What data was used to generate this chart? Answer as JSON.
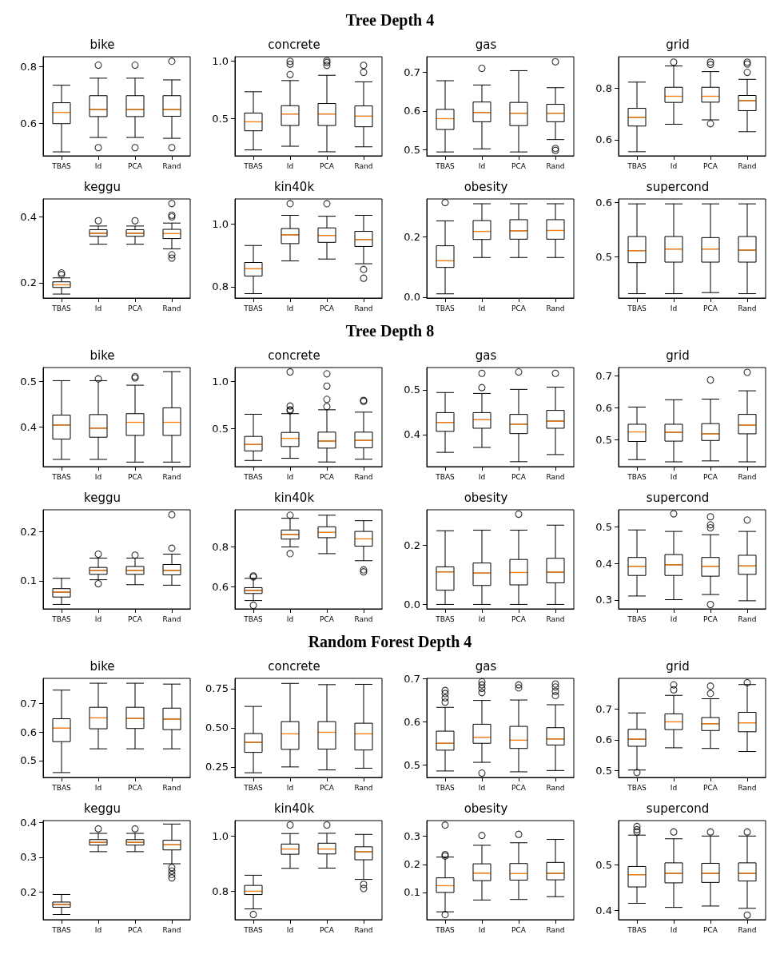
{
  "chart_data": [
    {
      "type": "other",
      "title": "Tree Depth 4"
    },
    {
      "type": "box",
      "title": "bike",
      "categories": [
        "TBAS",
        "Id",
        "PCA",
        "Rand"
      ],
      "ylim": [
        0.484,
        0.835
      ],
      "yticks": [
        0.6,
        0.8
      ],
      "boxes": [
        {
          "low": 0.498,
          "q1": 0.598,
          "median": 0.638,
          "q3": 0.672,
          "high": 0.734
        },
        {
          "low": 0.549,
          "q1": 0.623,
          "median": 0.648,
          "q3": 0.697,
          "high": 0.759,
          "outliers": [
            0.805,
            0.513
          ]
        },
        {
          "low": 0.549,
          "q1": 0.623,
          "median": 0.648,
          "q3": 0.697,
          "high": 0.759,
          "outliers": [
            0.805,
            0.513
          ]
        },
        {
          "low": 0.546,
          "q1": 0.624,
          "median": 0.648,
          "q3": 0.697,
          "high": 0.753,
          "outliers": [
            0.819,
            0.513
          ]
        }
      ]
    },
    {
      "type": "box",
      "title": "concrete",
      "categories": [
        "TBAS",
        "Id",
        "PCA",
        "Rand"
      ],
      "ylim": [
        0.175,
        1.035
      ],
      "yticks": [
        0.5,
        {
          "value": 1,
          "label": "1.0"
        }
      ],
      "boxes": [
        {
          "low": 0.226,
          "q1": 0.392,
          "median": 0.47,
          "q3": 0.546,
          "high": 0.731
        },
        {
          "low": 0.258,
          "q1": 0.438,
          "median": 0.538,
          "q3": 0.61,
          "high": 0.828,
          "outliers": [
            0.995,
            0.97,
            0.88
          ]
        },
        {
          "low": 0.21,
          "q1": 0.438,
          "median": 0.538,
          "q3": 0.629,
          "high": 0.874,
          "outliers": [
            1.0,
            0.985,
            0.96
          ]
        },
        {
          "low": 0.253,
          "q1": 0.427,
          "median": 0.519,
          "q3": 0.608,
          "high": 0.817,
          "outliers": [
            0.96,
            0.9
          ]
        }
      ]
    },
    {
      "type": "box",
      "title": "gas",
      "categories": [
        "TBAS",
        "Id",
        "PCA",
        "Rand"
      ],
      "ylim": [
        0.484,
        0.74
      ],
      "yticks": [
        0.5,
        0.6,
        0.7
      ],
      "boxes": [
        {
          "low": 0.494,
          "q1": 0.552,
          "median": 0.58,
          "q3": 0.604,
          "high": 0.678
        },
        {
          "low": 0.502,
          "q1": 0.572,
          "median": 0.596,
          "q3": 0.623,
          "high": 0.667,
          "outliers": [
            0.71
          ]
        },
        {
          "low": 0.494,
          "q1": 0.562,
          "median": 0.594,
          "q3": 0.622,
          "high": 0.704
        },
        {
          "low": 0.526,
          "q1": 0.572,
          "median": 0.594,
          "q3": 0.617,
          "high": 0.66,
          "outliers": [
            0.727,
            0.503,
            0.498
          ]
        }
      ]
    },
    {
      "type": "box",
      "title": "grid",
      "categories": [
        "TBAS",
        "Id",
        "PCA",
        "Rand"
      ],
      "ylim": [
        0.537,
        0.923
      ],
      "yticks": [
        0.6,
        0.8
      ],
      "boxes": [
        {
          "low": 0.553,
          "q1": 0.653,
          "median": 0.687,
          "q3": 0.722,
          "high": 0.824
        },
        {
          "low": 0.66,
          "q1": 0.745,
          "median": 0.769,
          "q3": 0.804,
          "high": 0.887,
          "outliers": [
            0.902
          ]
        },
        {
          "low": 0.677,
          "q1": 0.746,
          "median": 0.769,
          "q3": 0.804,
          "high": 0.865,
          "outliers": [
            0.902,
            0.893,
            0.662
          ]
        },
        {
          "low": 0.631,
          "q1": 0.713,
          "median": 0.752,
          "q3": 0.772,
          "high": 0.835,
          "outliers": [
            0.902,
            0.895,
            0.862
          ]
        }
      ]
    },
    {
      "type": "box",
      "title": "keggu",
      "categories": [
        "TBAS",
        "Id",
        "PCA",
        "Rand"
      ],
      "ylim": [
        0.154,
        0.454
      ],
      "yticks": [
        0.2,
        0.4
      ],
      "boxes": [
        {
          "low": 0.166,
          "q1": 0.186,
          "median": 0.194,
          "q3": 0.203,
          "high": 0.215,
          "outliers": [
            0.23,
            0.225
          ]
        },
        {
          "low": 0.317,
          "q1": 0.341,
          "median": 0.35,
          "q3": 0.361,
          "high": 0.372,
          "outliers": [
            0.388
          ]
        },
        {
          "low": 0.317,
          "q1": 0.341,
          "median": 0.35,
          "q3": 0.361,
          "high": 0.372,
          "outliers": [
            0.388
          ]
        },
        {
          "low": 0.303,
          "q1": 0.334,
          "median": 0.349,
          "q3": 0.362,
          "high": 0.381,
          "outliers": [
            0.44,
            0.405,
            0.4,
            0.285,
            0.275
          ]
        }
      ]
    },
    {
      "type": "box",
      "title": "kin40k",
      "categories": [
        "TBAS",
        "Id",
        "PCA",
        "Rand"
      ],
      "ylim": [
        0.764,
        1.079
      ],
      "yticks": [
        0.8,
        {
          "value": 1,
          "label": "1.0"
        }
      ],
      "boxes": [
        {
          "low": 0.778,
          "q1": 0.834,
          "median": 0.857,
          "q3": 0.877,
          "high": 0.931
        },
        {
          "low": 0.882,
          "q1": 0.937,
          "median": 0.965,
          "q3": 0.985,
          "high": 1.027,
          "outliers": [
            1.064
          ]
        },
        {
          "low": 0.888,
          "q1": 0.941,
          "median": 0.963,
          "q3": 0.987,
          "high": 1.024,
          "outliers": [
            1.064
          ]
        },
        {
          "low": 0.873,
          "q1": 0.928,
          "median": 0.95,
          "q3": 0.976,
          "high": 1.027,
          "outliers": [
            0.855,
            0.827
          ]
        }
      ]
    },
    {
      "type": "box",
      "title": "obesity",
      "categories": [
        "TBAS",
        "Id",
        "PCA",
        "Rand"
      ],
      "ylim": [
        -0.003,
        0.327
      ],
      "yticks": [
        {
          "value": 0,
          "label": "0.0"
        },
        0.2
      ],
      "boxes": [
        {
          "low": 0.011,
          "q1": 0.099,
          "median": 0.121,
          "q3": 0.171,
          "high": 0.254,
          "outliers": [
            0.315
          ]
        },
        {
          "low": 0.132,
          "q1": 0.192,
          "median": 0.219,
          "q3": 0.255,
          "high": 0.311
        },
        {
          "low": 0.132,
          "q1": 0.193,
          "median": 0.221,
          "q3": 0.258,
          "high": 0.311
        },
        {
          "low": 0.132,
          "q1": 0.193,
          "median": 0.222,
          "q3": 0.258,
          "high": 0.311
        }
      ]
    },
    {
      "type": "box",
      "title": "supercond",
      "categories": [
        "TBAS",
        "Id",
        "PCA",
        "Rand"
      ],
      "ylim": [
        0.424,
        0.606
      ],
      "yticks": [
        0.5,
        0.6
      ],
      "boxes": [
        {
          "low": 0.432,
          "q1": 0.489,
          "median": 0.511,
          "q3": 0.537,
          "high": 0.597
        },
        {
          "low": 0.432,
          "q1": 0.49,
          "median": 0.514,
          "q3": 0.537,
          "high": 0.597
        },
        {
          "low": 0.434,
          "q1": 0.49,
          "median": 0.514,
          "q3": 0.535,
          "high": 0.597
        },
        {
          "low": 0.432,
          "q1": 0.49,
          "median": 0.512,
          "q3": 0.537,
          "high": 0.597
        }
      ]
    },
    {
      "type": "other",
      "title": "Tree Depth 8"
    },
    {
      "type": "box",
      "title": "bike",
      "categories": [
        "TBAS",
        "Id",
        "PCA",
        "Rand"
      ],
      "ylim": [
        0.312,
        0.531
      ],
      "yticks": [
        0.4,
        0.5
      ],
      "boxes": [
        {
          "low": 0.328,
          "q1": 0.373,
          "median": 0.404,
          "q3": 0.426,
          "high": 0.502
        },
        {
          "low": 0.328,
          "q1": 0.377,
          "median": 0.397,
          "q3": 0.427,
          "high": 0.502,
          "outliers": [
            0.506
          ]
        },
        {
          "low": 0.322,
          "q1": 0.381,
          "median": 0.41,
          "q3": 0.429,
          "high": 0.492,
          "outliers": [
            0.508,
            0.511
          ]
        },
        {
          "low": 0.322,
          "q1": 0.381,
          "median": 0.41,
          "q3": 0.442,
          "high": 0.522
        }
      ]
    },
    {
      "type": "box",
      "title": "concrete",
      "categories": [
        "TBAS",
        "Id",
        "PCA",
        "Rand"
      ],
      "ylim": [
        0.1,
        1.146
      ],
      "yticks": [
        0.5,
        {
          "value": 1,
          "label": "1.0"
        }
      ],
      "boxes": [
        {
          "low": 0.165,
          "q1": 0.266,
          "median": 0.334,
          "q3": 0.419,
          "high": 0.653
        },
        {
          "low": 0.188,
          "q1": 0.312,
          "median": 0.399,
          "q3": 0.461,
          "high": 0.659,
          "outliers": [
            0.74,
            0.7,
            0.69,
            1.1
          ]
        },
        {
          "low": 0.149,
          "q1": 0.295,
          "median": 0.37,
          "q3": 0.464,
          "high": 0.7,
          "outliers": [
            0.735,
            0.81,
            0.95,
            1.08
          ]
        },
        {
          "low": 0.178,
          "q1": 0.299,
          "median": 0.377,
          "q3": 0.464,
          "high": 0.675,
          "outliers": [
            0.8,
            0.79
          ]
        }
      ]
    },
    {
      "type": "box",
      "title": "gas",
      "categories": [
        "TBAS",
        "Id",
        "PCA",
        "Rand"
      ],
      "ylim": [
        0.328,
        0.55
      ],
      "yticks": [
        0.4,
        0.5
      ],
      "boxes": [
        {
          "low": 0.36,
          "q1": 0.407,
          "median": 0.427,
          "q3": 0.449,
          "high": 0.494
        },
        {
          "low": 0.371,
          "q1": 0.414,
          "median": 0.433,
          "q3": 0.449,
          "high": 0.492,
          "outliers": [
            0.537,
            0.505
          ]
        },
        {
          "low": 0.339,
          "q1": 0.402,
          "median": 0.423,
          "q3": 0.445,
          "high": 0.501,
          "outliers": [
            0.54
          ]
        },
        {
          "low": 0.355,
          "q1": 0.414,
          "median": 0.43,
          "q3": 0.454,
          "high": 0.506,
          "outliers": [
            0.537
          ]
        }
      ]
    },
    {
      "type": "box",
      "title": "grid",
      "categories": [
        "TBAS",
        "Id",
        "PCA",
        "Rand"
      ],
      "ylim": [
        0.415,
        0.726
      ],
      "yticks": [
        0.5,
        0.6,
        0.7
      ],
      "boxes": [
        {
          "low": 0.437,
          "q1": 0.494,
          "median": 0.524,
          "q3": 0.548,
          "high": 0.602
        },
        {
          "low": 0.43,
          "q1": 0.495,
          "median": 0.523,
          "q3": 0.548,
          "high": 0.625
        },
        {
          "low": 0.433,
          "q1": 0.497,
          "median": 0.518,
          "q3": 0.55,
          "high": 0.627,
          "outliers": [
            0.687
          ]
        },
        {
          "low": 0.43,
          "q1": 0.518,
          "median": 0.545,
          "q3": 0.579,
          "high": 0.653,
          "outliers": [
            0.711
          ]
        }
      ]
    },
    {
      "type": "box",
      "title": "keggu",
      "categories": [
        "TBAS",
        "Id",
        "PCA",
        "Rand"
      ],
      "ylim": [
        0.043,
        0.244
      ],
      "yticks": [
        0.1,
        0.2
      ],
      "boxes": [
        {
          "low": 0.052,
          "q1": 0.067,
          "median": 0.077,
          "q3": 0.084,
          "high": 0.105
        },
        {
          "low": 0.102,
          "q1": 0.113,
          "median": 0.121,
          "q3": 0.127,
          "high": 0.146,
          "outliers": [
            0.154,
            0.094
          ]
        },
        {
          "low": 0.092,
          "q1": 0.113,
          "median": 0.121,
          "q3": 0.129,
          "high": 0.146,
          "outliers": [
            0.152
          ]
        },
        {
          "low": 0.091,
          "q1": 0.112,
          "median": 0.121,
          "q3": 0.133,
          "high": 0.154,
          "outliers": [
            0.166,
            0.234
          ]
        }
      ]
    },
    {
      "type": "box",
      "title": "kin40k",
      "categories": [
        "TBAS",
        "Id",
        "PCA",
        "Rand"
      ],
      "ylim": [
        0.492,
        0.982
      ],
      "yticks": [
        0.6,
        0.8
      ],
      "boxes": [
        {
          "low": 0.533,
          "q1": 0.568,
          "median": 0.583,
          "q3": 0.597,
          "high": 0.643,
          "outliers": [
            0.655,
            0.65,
            0.51
          ]
        },
        {
          "low": 0.798,
          "q1": 0.837,
          "median": 0.86,
          "q3": 0.882,
          "high": 0.94,
          "outliers": [
            0.955,
            0.765
          ]
        },
        {
          "low": 0.765,
          "q1": 0.844,
          "median": 0.87,
          "q3": 0.898,
          "high": 0.955
        },
        {
          "low": 0.73,
          "q1": 0.802,
          "median": 0.838,
          "q3": 0.875,
          "high": 0.928,
          "outliers": [
            0.685,
            0.675
          ]
        }
      ]
    },
    {
      "type": "box",
      "title": "obesity",
      "categories": [
        "TBAS",
        "Id",
        "PCA",
        "Rand"
      ],
      "ylim": [
        -0.015,
        0.32
      ],
      "yticks": [
        {
          "value": 0,
          "label": "0.0"
        },
        0.2
      ],
      "boxes": [
        {
          "low": 0,
          "q1": 0.048,
          "median": 0.11,
          "q3": 0.127,
          "high": 0.249
        },
        {
          "low": 0,
          "q1": 0.064,
          "median": 0.106,
          "q3": 0.14,
          "high": 0.251
        },
        {
          "low": 0,
          "q1": 0.066,
          "median": 0.108,
          "q3": 0.152,
          "high": 0.251,
          "outliers": [
            0.305
          ]
        },
        {
          "low": 0,
          "q1": 0.073,
          "median": 0.109,
          "q3": 0.156,
          "high": 0.268
        }
      ]
    },
    {
      "type": "box",
      "title": "supercond",
      "categories": [
        "TBAS",
        "Id",
        "PCA",
        "Rand"
      ],
      "ylim": [
        0.276,
        0.546
      ],
      "yticks": [
        0.3,
        0.4,
        0.5
      ],
      "boxes": [
        {
          "low": 0.311,
          "q1": 0.367,
          "median": 0.392,
          "q3": 0.416,
          "high": 0.491
        },
        {
          "low": 0.301,
          "q1": 0.367,
          "median": 0.396,
          "q3": 0.424,
          "high": 0.487,
          "outliers": [
            0.535
          ]
        },
        {
          "low": 0.315,
          "q1": 0.365,
          "median": 0.392,
          "q3": 0.416,
          "high": 0.478,
          "outliers": [
            0.527,
            0.505,
            0.497,
            0.288
          ]
        },
        {
          "low": 0.298,
          "q1": 0.37,
          "median": 0.393,
          "q3": 0.422,
          "high": 0.487,
          "outliers": [
            0.518
          ]
        }
      ]
    },
    {
      "type": "other",
      "title": "Random Forest Depth 4"
    },
    {
      "type": "box",
      "title": "bike",
      "categories": [
        "TBAS",
        "Id",
        "PCA",
        "Rand"
      ],
      "ylim": [
        0.441,
        0.787
      ],
      "yticks": [
        0.5,
        0.6,
        0.7
      ],
      "boxes": [
        {
          "low": 0.458,
          "q1": 0.566,
          "median": 0.613,
          "q3": 0.646,
          "high": 0.746
        },
        {
          "low": 0.541,
          "q1": 0.611,
          "median": 0.649,
          "q3": 0.686,
          "high": 0.77
        },
        {
          "low": 0.541,
          "q1": 0.612,
          "median": 0.647,
          "q3": 0.686,
          "high": 0.77
        },
        {
          "low": 0.541,
          "q1": 0.608,
          "median": 0.645,
          "q3": 0.683,
          "high": 0.767
        }
      ]
    },
    {
      "type": "box",
      "title": "concrete",
      "categories": [
        "TBAS",
        "Id",
        "PCA",
        "Rand"
      ],
      "ylim": [
        0.183,
        0.815
      ],
      "yticks": [
        0.25,
        {
          "value": 0.5,
          "label": "0.50"
        },
        0.75
      ],
      "boxes": [
        {
          "low": 0.213,
          "q1": 0.343,
          "median": 0.407,
          "q3": 0.463,
          "high": 0.636
        },
        {
          "low": 0.25,
          "q1": 0.362,
          "median": 0.461,
          "q3": 0.539,
          "high": 0.783
        },
        {
          "low": 0.231,
          "q1": 0.364,
          "median": 0.471,
          "q3": 0.539,
          "high": 0.775
        },
        {
          "low": 0.242,
          "q1": 0.358,
          "median": 0.461,
          "q3": 0.529,
          "high": 0.777
        }
      ]
    },
    {
      "type": "box",
      "title": "gas",
      "categories": [
        "TBAS",
        "Id",
        "PCA",
        "Rand"
      ],
      "ylim": [
        0.471,
        0.7
      ],
      "yticks": [
        0.5,
        0.6,
        0.7
      ],
      "boxes": [
        {
          "low": 0.486,
          "q1": 0.534,
          "median": 0.55,
          "q3": 0.578,
          "high": 0.633,
          "outliers": [
            0.645,
            0.655,
            0.665,
            0.672
          ]
        },
        {
          "low": 0.506,
          "q1": 0.55,
          "median": 0.564,
          "q3": 0.594,
          "high": 0.649,
          "outliers": [
            0.667,
            0.677,
            0.685,
            0.692,
            0.481
          ]
        },
        {
          "low": 0.484,
          "q1": 0.538,
          "median": 0.557,
          "q3": 0.589,
          "high": 0.65,
          "outliers": [
            0.678,
            0.685
          ]
        },
        {
          "low": 0.487,
          "q1": 0.546,
          "median": 0.56,
          "q3": 0.586,
          "high": 0.639,
          "outliers": [
            0.66,
            0.67,
            0.68,
            0.687
          ]
        }
      ]
    },
    {
      "type": "box",
      "title": "grid",
      "categories": [
        "TBAS",
        "Id",
        "PCA",
        "Rand"
      ],
      "ylim": [
        0.478,
        0.799
      ],
      "yticks": [
        0.5,
        0.6,
        0.7
      ],
      "boxes": [
        {
          "low": 0.502,
          "q1": 0.579,
          "median": 0.602,
          "q3": 0.634,
          "high": 0.687,
          "outliers": [
            0.494
          ]
        },
        {
          "low": 0.574,
          "q1": 0.633,
          "median": 0.658,
          "q3": 0.684,
          "high": 0.744,
          "outliers": [
            0.762,
            0.778
          ]
        },
        {
          "low": 0.572,
          "q1": 0.63,
          "median": 0.652,
          "q3": 0.672,
          "high": 0.733,
          "outliers": [
            0.75,
            0.774
          ]
        },
        {
          "low": 0.562,
          "q1": 0.626,
          "median": 0.655,
          "q3": 0.689,
          "high": 0.779,
          "outliers": [
            0.785
          ]
        }
      ]
    },
    {
      "type": "box",
      "title": "keggu",
      "categories": [
        "TBAS",
        "Id",
        "PCA",
        "Rand"
      ],
      "ylim": [
        0.119,
        0.406
      ],
      "yticks": [
        0.2,
        0.3,
        0.4
      ],
      "boxes": [
        {
          "low": 0.134,
          "q1": 0.155,
          "median": 0.163,
          "q3": 0.17,
          "high": 0.192
        },
        {
          "low": 0.316,
          "q1": 0.335,
          "median": 0.343,
          "q3": 0.351,
          "high": 0.369,
          "outliers": [
            0.382
          ]
        },
        {
          "low": 0.316,
          "q1": 0.335,
          "median": 0.343,
          "q3": 0.351,
          "high": 0.369,
          "outliers": [
            0.382
          ]
        },
        {
          "low": 0.281,
          "q1": 0.321,
          "median": 0.336,
          "q3": 0.349,
          "high": 0.396,
          "outliers": [
            0.27,
            0.26,
            0.25,
            0.24
          ]
        }
      ]
    },
    {
      "type": "box",
      "title": "kin40k",
      "categories": [
        "TBAS",
        "Id",
        "PCA",
        "Rand"
      ],
      "ylim": [
        0.697,
        1.056
      ],
      "yticks": [
        0.8,
        {
          "value": 1,
          "label": "1.0"
        }
      ],
      "boxes": [
        {
          "low": 0.736,
          "q1": 0.788,
          "median": 0.8,
          "q3": 0.821,
          "high": 0.858,
          "outliers": [
            0.716
          ]
        },
        {
          "low": 0.883,
          "q1": 0.934,
          "median": 0.953,
          "q3": 0.971,
          "high": 1.009,
          "outliers": [
            1.04
          ]
        },
        {
          "low": 0.884,
          "q1": 0.935,
          "median": 0.953,
          "q3": 0.974,
          "high": 1.01,
          "outliers": [
            1.04
          ]
        },
        {
          "low": 0.843,
          "q1": 0.914,
          "median": 0.943,
          "q3": 0.961,
          "high": 1.006,
          "outliers": [
            0.825,
            0.81
          ]
        }
      ]
    },
    {
      "type": "box",
      "title": "obesity",
      "categories": [
        "TBAS",
        "Id",
        "PCA",
        "Rand"
      ],
      "ylim": [
        0.003,
        0.356
      ],
      "yticks": [
        0.1,
        0.2,
        0.3
      ],
      "boxes": [
        {
          "low": 0.031,
          "q1": 0.1,
          "median": 0.124,
          "q3": 0.152,
          "high": 0.226,
          "outliers": [
            0.34,
            0.235,
            0.23,
            0.021
          ]
        },
        {
          "low": 0.073,
          "q1": 0.142,
          "median": 0.169,
          "q3": 0.202,
          "high": 0.268,
          "outliers": [
            0.303
          ]
        },
        {
          "low": 0.075,
          "q1": 0.144,
          "median": 0.167,
          "q3": 0.203,
          "high": 0.277,
          "outliers": [
            0.307
          ]
        },
        {
          "low": 0.085,
          "q1": 0.145,
          "median": 0.168,
          "q3": 0.207,
          "high": 0.289
        }
      ]
    },
    {
      "type": "box",
      "title": "supercond",
      "categories": [
        "TBAS",
        "Id",
        "PCA",
        "Rand"
      ],
      "ylim": [
        0.38,
        0.598
      ],
      "yticks": [
        0.4,
        0.5
      ],
      "boxes": [
        {
          "low": 0.416,
          "q1": 0.452,
          "median": 0.479,
          "q3": 0.497,
          "high": 0.566,
          "outliers": [
            0.585,
            0.578,
            0.573
          ]
        },
        {
          "low": 0.407,
          "q1": 0.461,
          "median": 0.482,
          "q3": 0.505,
          "high": 0.558,
          "outliers": [
            0.573
          ]
        },
        {
          "low": 0.41,
          "q1": 0.462,
          "median": 0.482,
          "q3": 0.504,
          "high": 0.564,
          "outliers": [
            0.573
          ]
        },
        {
          "low": 0.405,
          "q1": 0.465,
          "median": 0.482,
          "q3": 0.505,
          "high": 0.564,
          "outliers": [
            0.573,
            0.39
          ]
        }
      ]
    }
  ]
}
